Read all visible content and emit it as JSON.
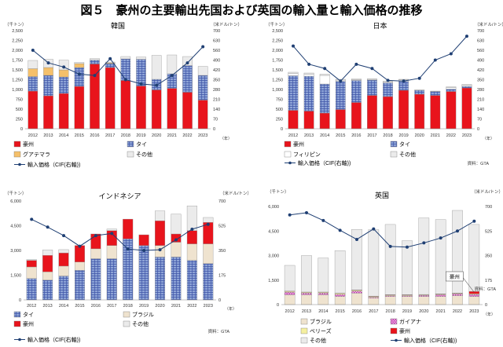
{
  "figure_title": "図５　豪州の主要輸出先国および英国の輸入量と輸入価格の推移",
  "chart_data": [
    {
      "type": "bar",
      "stacked": true,
      "title": "韓国",
      "ylabel_left": "（千トン）",
      "ylabel_right": "（米ドル/トン）",
      "xlabel": "（年）",
      "categories": [
        "2012",
        "2013",
        "2014",
        "2015",
        "2016",
        "2017",
        "2018",
        "2019",
        "2020",
        "2021",
        "2022",
        "2023"
      ],
      "ylim_left": [
        0,
        2500
      ],
      "yticks_left": [
        "0",
        "250",
        "500",
        "750",
        "1,000",
        "1,250",
        "1,500",
        "1,750",
        "2,000",
        "2,250",
        "2,500"
      ],
      "ylim_right": [
        0,
        700
      ],
      "yticks_right": [
        "0",
        "70",
        "140",
        "210",
        "280",
        "350",
        "420",
        "490",
        "560",
        "630",
        "700"
      ],
      "series": [
        {
          "name": "豪州",
          "color": "#e8141c",
          "pattern": "solid",
          "values": [
            960,
            840,
            900,
            1080,
            1650,
            1560,
            1230,
            1090,
            990,
            1030,
            930,
            730
          ]
        },
        {
          "name": "タイ",
          "color": "#8da3d6",
          "pattern": "grid",
          "values": [
            370,
            520,
            420,
            480,
            100,
            100,
            550,
            680,
            270,
            370,
            680,
            630
          ]
        },
        {
          "name": "グアテマラ",
          "color": "#f5c06a",
          "pattern": "solid",
          "values": [
            200,
            200,
            180,
            100,
            0,
            20,
            0,
            0,
            0,
            0,
            0,
            0
          ]
        },
        {
          "name": "その他",
          "color": "#ebebeb",
          "pattern": "solid",
          "values": [
            210,
            210,
            250,
            30,
            40,
            20,
            60,
            60,
            610,
            480,
            230,
            230
          ]
        }
      ],
      "line": {
        "name": "輸入価格（CIF(右軸))",
        "values": [
          560,
          470,
          440,
          390,
          380,
          500,
          350,
          320,
          310,
          380,
          470,
          585
        ]
      },
      "legend": [
        "豪州",
        "タイ",
        "グアテマラ",
        "その他"
      ],
      "line_legend": "輸入価格（CIF(右軸))",
      "source": ""
    },
    {
      "type": "bar",
      "stacked": true,
      "title": "日本",
      "ylabel_left": "（千トン）",
      "ylabel_right": "（米ドル/トン）",
      "xlabel": "（年）",
      "categories": [
        "2012",
        "2013",
        "2014",
        "2015",
        "2016",
        "2017",
        "2018",
        "2019",
        "2020",
        "2021",
        "2022",
        "2023"
      ],
      "ylim_left": [
        0,
        2500
      ],
      "yticks_left": [
        "0",
        "250",
        "500",
        "750",
        "1,000",
        "1,250",
        "1,500",
        "1,750",
        "2,000",
        "2,250",
        "2,500"
      ],
      "ylim_right": [
        0,
        700
      ],
      "yticks_right": [
        "0",
        "70",
        "140",
        "210",
        "280",
        "350",
        "420",
        "490",
        "560",
        "630",
        "700"
      ],
      "series": [
        {
          "name": "豪州",
          "color": "#e8141c",
          "pattern": "solid",
          "values": [
            470,
            450,
            400,
            490,
            670,
            850,
            820,
            980,
            880,
            850,
            950,
            1040
          ]
        },
        {
          "name": "タイ",
          "color": "#8da3d6",
          "pattern": "grid",
          "values": [
            880,
            890,
            740,
            720,
            560,
            390,
            350,
            230,
            100,
            100,
            60,
            40
          ]
        },
        {
          "name": "フィリピン",
          "color": "#ffffff",
          "pattern": "solid",
          "values": [
            60,
            50,
            220,
            30,
            20,
            20,
            30,
            40,
            0,
            0,
            40,
            30
          ]
        },
        {
          "name": "その他",
          "color": "#ebebeb",
          "pattern": "solid",
          "values": [
            30,
            30,
            30,
            20,
            20,
            10,
            10,
            10,
            10,
            10,
            20,
            20
          ]
        }
      ],
      "line": {
        "name": "輸入価格（CIF(右軸))",
        "values": [
          590,
          460,
          430,
          340,
          460,
          430,
          345,
          340,
          360,
          490,
          535,
          660
        ]
      },
      "legend": [
        "豪州",
        "タイ",
        "フィリピン",
        "その他"
      ],
      "line_legend": "輸入価格（CIF(右軸))",
      "source": "資料：GTA"
    },
    {
      "type": "bar",
      "stacked": true,
      "title": "インドネシア",
      "ylabel_left": "（千トン）",
      "ylabel_right": "（米ドル/トン）",
      "xlabel": "（年）",
      "categories": [
        "2012",
        "2013",
        "2014",
        "2015",
        "2016",
        "2017",
        "2018",
        "2019",
        "2020",
        "2021",
        "2022",
        "2023"
      ],
      "ylim_left": [
        0,
        6000
      ],
      "yticks_left": [
        "0",
        "1,500",
        "3,000",
        "4,500",
        "6,000"
      ],
      "ylim_right": [
        0,
        700
      ],
      "yticks_right": [
        "0",
        "175",
        "350",
        "525",
        "700"
      ],
      "series": [
        {
          "name": "タイ",
          "color": "#8da3d6",
          "pattern": "grid",
          "values": [
            1300,
            1200,
            1450,
            1800,
            2500,
            2500,
            3700,
            3300,
            2600,
            2600,
            2400,
            2200
          ]
        },
        {
          "name": "ブラジル",
          "color": "#efe3cf",
          "pattern": "solid",
          "values": [
            700,
            500,
            600,
            500,
            600,
            800,
            0,
            0,
            700,
            900,
            1000,
            1200
          ]
        },
        {
          "name": "豪州",
          "color": "#e8141c",
          "pattern": "solid",
          "values": [
            400,
            1000,
            800,
            1000,
            900,
            900,
            1200,
            650,
            1500,
            500,
            800,
            1300
          ]
        },
        {
          "name": "その他",
          "color": "#ebebeb",
          "pattern": "solid",
          "values": [
            50,
            330,
            200,
            0,
            0,
            100,
            0,
            0,
            600,
            1200,
            1500,
            300
          ]
        }
      ],
      "line": {
        "name": "輸入価格（CIF(右軸))",
        "values": [
          570,
          515,
          455,
          380,
          455,
          470,
          360,
          350,
          355,
          425,
          500,
          535
        ]
      },
      "legend": [
        "タイ",
        "ブラジル",
        "豪州",
        "その他"
      ],
      "line_legend": "輸入価格（CIF(右軸))",
      "source": "資料：GTA"
    },
    {
      "type": "bar",
      "stacked": true,
      "title": "英国",
      "ylabel_left": "（千トン）",
      "ylabel_right": "（米ドル/トン）",
      "xlabel": "（年）",
      "categories": [
        "2012",
        "2013",
        "2014",
        "2015",
        "2016",
        "2017",
        "2018",
        "2019",
        "2020",
        "2021",
        "2022",
        "2023"
      ],
      "ylim_left": [
        0,
        6000
      ],
      "yticks_left": [
        "0",
        "1,500",
        "3,000",
        "4,500",
        "6,000"
      ],
      "ylim_right": [
        0,
        700
      ],
      "yticks_right": [
        "0",
        "175",
        "350",
        "525",
        "700"
      ],
      "series": [
        {
          "name": "ブラジル",
          "color": "#efe3cf",
          "pattern": "solid",
          "values": [
            600,
            600,
            600,
            500,
            700,
            400,
            500,
            500,
            500,
            500,
            550,
            500
          ]
        },
        {
          "name": "ガイアナ",
          "color": "#e99be0",
          "pattern": "check",
          "values": [
            150,
            100,
            100,
            120,
            120,
            50,
            50,
            50,
            60,
            100,
            100,
            120
          ]
        },
        {
          "name": "ベリーズ",
          "color": "#f5f0a0",
          "pattern": "solid",
          "values": [
            60,
            50,
            50,
            60,
            60,
            40,
            40,
            40,
            40,
            40,
            40,
            40
          ]
        },
        {
          "name": "豪州",
          "color": "#e8141c",
          "pattern": "solid",
          "values": [
            20,
            20,
            20,
            20,
            20,
            30,
            20,
            20,
            20,
            20,
            20,
            150
          ]
        },
        {
          "name": "その他",
          "color": "#ebebeb",
          "pattern": "solid",
          "values": [
            1570,
            2230,
            2080,
            2600,
            3700,
            4060,
            4290,
            3300,
            4680,
            4540,
            5050,
            4090
          ]
        }
      ],
      "line": {
        "name": "輸入価格（CIF(右軸))",
        "values": [
          640,
          655,
          600,
          530,
          465,
          540,
          415,
          410,
          440,
          475,
          525,
          595
        ]
      },
      "annotation": {
        "text": "豪州",
        "category": "2023"
      },
      "legend": [
        "ブラジル",
        "ガイアナ",
        "ベリーズ",
        "豪州",
        "その他"
      ],
      "line_legend": "輸入価格（CIF(右軸))",
      "source": "資料：GTA"
    }
  ]
}
